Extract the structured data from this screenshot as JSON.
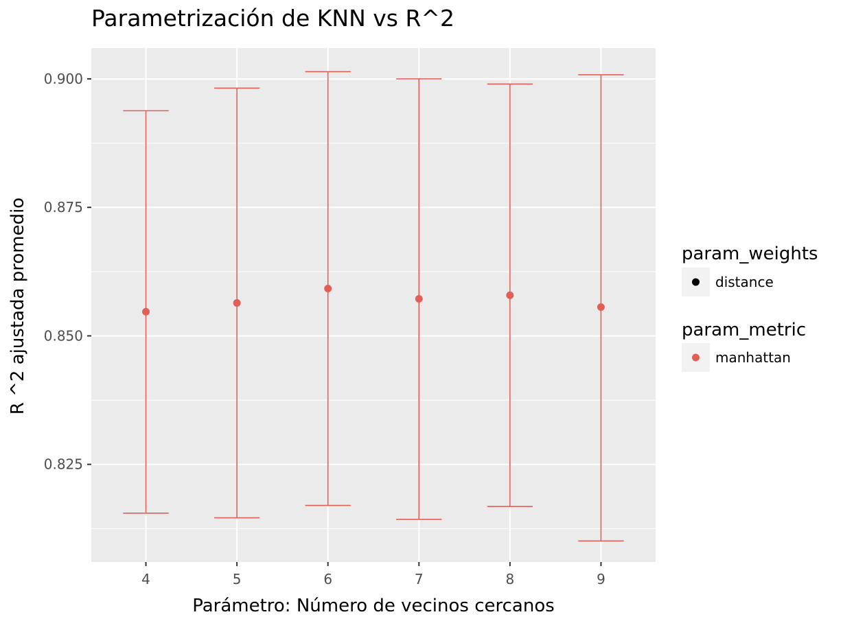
{
  "chart_data": {
    "type": "scatter",
    "title": "Parametrización de KNN vs R^2",
    "xlabel": "Parámetro: Número de vecinos cercanos",
    "ylabel": "R ^2 ajustada promedio",
    "x_ticks": [
      "4",
      "5",
      "6",
      "7",
      "8",
      "9"
    ],
    "y_ticks": [
      "0.825",
      "0.850",
      "0.875",
      "0.900"
    ],
    "xlim": [
      3.4,
      9.6
    ],
    "ylim": [
      0.806,
      0.906
    ],
    "grid": true,
    "legend_position": "right",
    "series": [
      {
        "name": "manhattan",
        "color": "#e06058",
        "points": [
          {
            "x": 4,
            "y": 0.8547,
            "ymin": 0.8155,
            "ymax": 0.8938
          },
          {
            "x": 5,
            "y": 0.8564,
            "ymin": 0.8146,
            "ymax": 0.8982
          },
          {
            "x": 6,
            "y": 0.8592,
            "ymin": 0.817,
            "ymax": 0.9014
          },
          {
            "x": 7,
            "y": 0.8572,
            "ymin": 0.8143,
            "ymax": 0.9
          },
          {
            "x": 8,
            "y": 0.8579,
            "ymin": 0.8168,
            "ymax": 0.899
          },
          {
            "x": 9,
            "y": 0.8556,
            "ymin": 0.8101,
            "ymax": 0.9008
          }
        ]
      }
    ],
    "legends": [
      {
        "title": "param_weights",
        "items": [
          {
            "label": "distance",
            "color": "#000000"
          }
        ]
      },
      {
        "title": "param_metric",
        "items": [
          {
            "label": "manhattan",
            "color": "#e06058"
          }
        ]
      }
    ]
  }
}
